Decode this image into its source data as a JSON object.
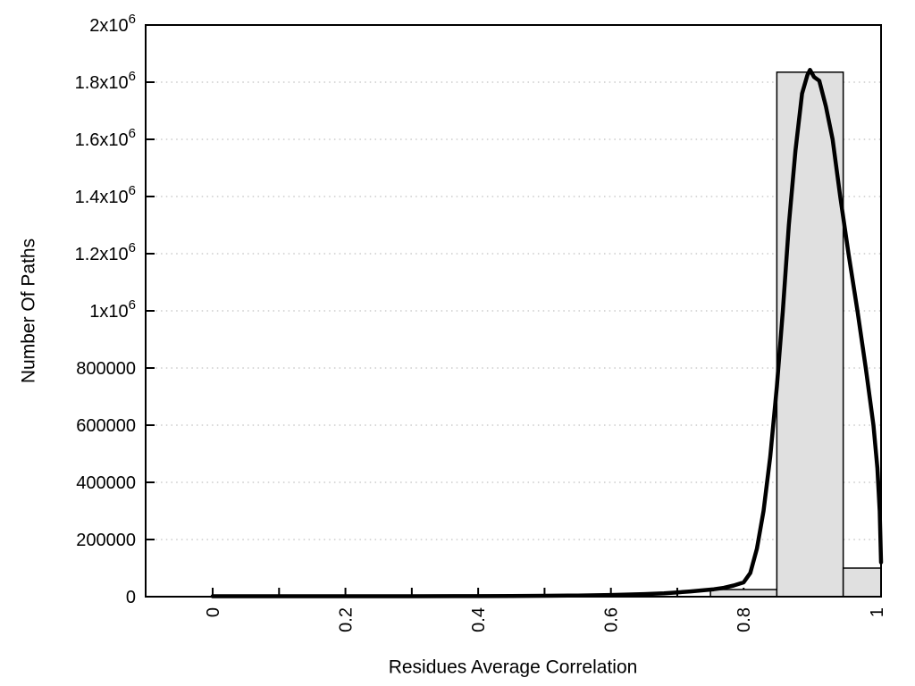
{
  "page": {
    "background": "#ffffff"
  },
  "chart_data": {
    "type": "bar",
    "subtype": "histogram_with_fit_line",
    "title": "",
    "xlabel": "Residues Average Correlation",
    "ylabel": "Number Of Paths",
    "xlim": [
      -0.101,
      1.007
    ],
    "ylim": [
      0,
      2000000
    ],
    "grid": {
      "horizontal": true,
      "vertical": false,
      "style": "dotted",
      "color": "#b0b0b0"
    },
    "legend": "none",
    "x_tick_step_minor": 0.1,
    "x_all_ticks": [
      0,
      0.1,
      0.2,
      0.3,
      0.4,
      0.5,
      0.6,
      0.7,
      0.8,
      0.9,
      1.0
    ],
    "x_major_ticks": [
      0,
      0.2,
      0.4,
      0.6,
      0.8,
      1.0
    ],
    "x_tick_labels": [
      "0",
      "0.2",
      "0.4",
      "0.6",
      "0.8",
      "1"
    ],
    "x_tick_label_rotation_deg": -90,
    "y_ticks": [
      0,
      200000,
      400000,
      600000,
      800000,
      1000000,
      1200000,
      1400000,
      1600000,
      1800000,
      2000000
    ],
    "y_tick_labels": [
      "0",
      "200000",
      "400000",
      "600000",
      "800000",
      "1x10^6",
      "1.2x10^6",
      "1.4x10^6",
      "1.6x10^6",
      "1.8x10^6",
      "2x10^6"
    ],
    "bars": {
      "bin_width": 0.1,
      "centers": [
        0.8,
        0.9,
        1.0
      ],
      "heights": [
        25000,
        1835000,
        100000
      ],
      "fill": "#e0e0e0",
      "border_color": "#000000"
    },
    "fit_curve": {
      "color": "#000000",
      "stroke_width": 4.5,
      "peak": {
        "x": 0.9,
        "y": 1843000
      },
      "points": [
        [
          0.0,
          1500
        ],
        [
          0.1,
          1500
        ],
        [
          0.2,
          1500
        ],
        [
          0.3,
          1500
        ],
        [
          0.4,
          1800
        ],
        [
          0.45,
          2300
        ],
        [
          0.5,
          3000
        ],
        [
          0.55,
          4200
        ],
        [
          0.6,
          6000
        ],
        [
          0.65,
          9000
        ],
        [
          0.68,
          12000
        ],
        [
          0.7,
          15000
        ],
        [
          0.72,
          18500
        ],
        [
          0.74,
          22500
        ],
        [
          0.755,
          26000
        ],
        [
          0.77,
          31000
        ],
        [
          0.785,
          39000
        ],
        [
          0.8,
          50000
        ],
        [
          0.81,
          83000
        ],
        [
          0.82,
          168000
        ],
        [
          0.83,
          300000
        ],
        [
          0.84,
          490000
        ],
        [
          0.85,
          735000
        ],
        [
          0.859,
          1000000
        ],
        [
          0.868,
          1300000
        ],
        [
          0.878,
          1560000
        ],
        [
          0.888,
          1760000
        ],
        [
          0.896,
          1825000
        ],
        [
          0.9,
          1843000
        ],
        [
          0.906,
          1818000
        ],
        [
          0.914,
          1805000
        ],
        [
          0.924,
          1715000
        ],
        [
          0.934,
          1600000
        ],
        [
          0.9455,
          1400000
        ],
        [
          0.958,
          1200000
        ],
        [
          0.9715,
          1000000
        ],
        [
          0.984,
          800000
        ],
        [
          0.9955,
          600000
        ],
        [
          1.0015,
          450000
        ],
        [
          1.005,
          300000
        ],
        [
          1.007,
          120000
        ]
      ]
    },
    "colors": {
      "axis": "#000000",
      "text": "#000000",
      "background": "#ffffff"
    }
  }
}
